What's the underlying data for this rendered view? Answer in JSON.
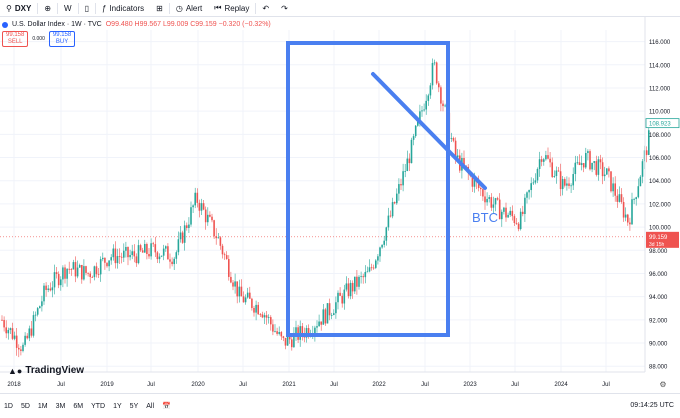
{
  "toolbar": {
    "symbol": "DXY",
    "interval": "W",
    "indicators_label": "Indicators",
    "alert_label": "Alert",
    "replay_label": "Replay"
  },
  "legend": {
    "title": "U.S. Dollar Index · 1W · TVC",
    "ohlc": "O99.480 H99.567 L99.009 C99.159 −0.320 (−0.32%)"
  },
  "trade": {
    "sell_price": "99.158",
    "sell_label": "SELL",
    "spread": "0.000",
    "buy_price": "99.158",
    "buy_label": "BUY"
  },
  "annotation": {
    "label": "BTC"
  },
  "price_scale": {
    "ticks": [
      "116.000",
      "114.000",
      "112.000",
      "110.000",
      "108.000",
      "106.000",
      "104.000",
      "102.000",
      "100.000",
      "98.000",
      "96.000",
      "94.000",
      "92.000",
      "90.000",
      "88.000"
    ],
    "badge_high": "108.923",
    "badge_last": "99.159",
    "badge_countdown": "3d 15h"
  },
  "time_axis": {
    "labels": [
      "2018",
      "Jul",
      "2019",
      "Jul",
      "2020",
      "Jul",
      "2021",
      "Jul",
      "2022",
      "Jul",
      "2023",
      "Jul",
      "2024",
      "Jul"
    ]
  },
  "bottom": {
    "ranges": [
      "1D",
      "5D",
      "1M",
      "3M",
      "6M",
      "YTD",
      "1Y",
      "5Y",
      "All"
    ],
    "clock": "09:14:25 UTC"
  },
  "branding": {
    "logo_text": "TradingView"
  },
  "chart_data": {
    "type": "line",
    "title": "U.S. Dollar Index · 1W · TVC",
    "x": [
      "2018-01",
      "2018-04",
      "2018-07",
      "2018-10",
      "2019-01",
      "2019-04",
      "2019-07",
      "2019-10",
      "2020-01",
      "2020-03",
      "2020-05",
      "2020-07",
      "2020-09",
      "2021-01",
      "2021-04",
      "2021-07",
      "2021-10",
      "2022-01",
      "2022-04",
      "2022-07",
      "2022-09",
      "2022-11",
      "2023-01",
      "2023-04",
      "2023-07",
      "2023-10",
      "2024-01",
      "2024-04",
      "2024-07",
      "2024-09",
      "2024-11"
    ],
    "series": [
      {
        "values": [
          92.0,
          89.5,
          94.5,
          96.5,
          96.0,
          97.5,
          97.5,
          98.0,
          97.5,
          102.5,
          99.0,
          94.0,
          93.0,
          90.0,
          91.0,
          92.5,
          94.5,
          96.0,
          101.0,
          107.0,
          114.0,
          106.0,
          103.5,
          101.5,
          100.5,
          106.5,
          103.5,
          106.0,
          104.5,
          100.5,
          108.0
        ]
      }
    ],
    "ylim": [
      87.5,
      117.0
    ],
    "grid": true,
    "y_ticks": [
      88,
      90,
      92,
      94,
      96,
      98,
      100,
      102,
      104,
      106,
      108,
      110,
      112,
      114,
      116
    ],
    "last_price": 99.159
  },
  "colors": {
    "up": "#26a69a",
    "down": "#ef5350",
    "drawing": "#4a7ff0",
    "last_price": "#ef5350",
    "high_badge": "#26a69a"
  }
}
